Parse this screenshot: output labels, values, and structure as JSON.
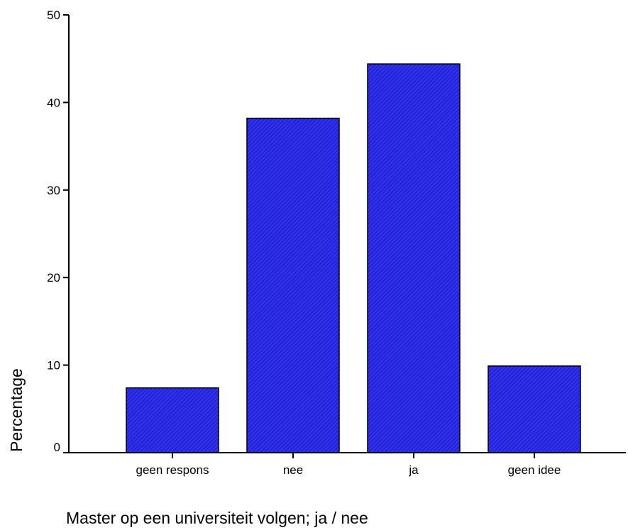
{
  "chart_data": {
    "type": "bar",
    "categories": [
      "geen respons",
      "nee",
      "ja",
      "geen idee"
    ],
    "values": [
      7.4,
      38.2,
      44.4,
      9.9
    ],
    "xlabel": "Master op een universiteit volgen; ja / nee",
    "ylabel": "Percentage",
    "ylim": [
      0,
      50
    ],
    "yticks": [
      0,
      10,
      20,
      30,
      40,
      50
    ],
    "grid": false,
    "bar_color": "#2222dd"
  }
}
